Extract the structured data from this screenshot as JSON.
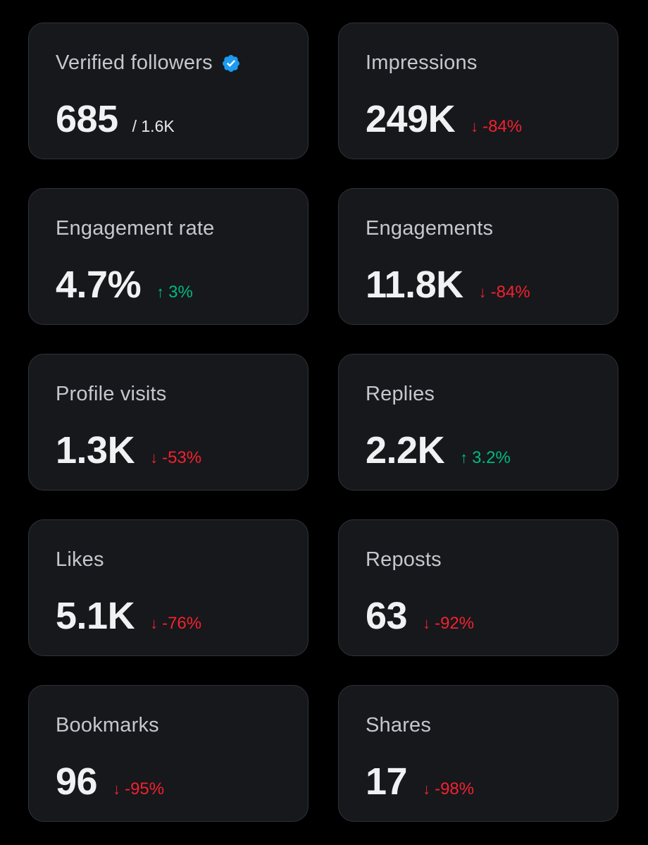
{
  "colors": {
    "background": "#000000",
    "card_background": "#16181c",
    "card_border": "#2f3336",
    "positive": "#00ba7c",
    "negative": "#f4212e",
    "verified_badge": "#1d9bf0"
  },
  "metrics": [
    {
      "label": "Verified followers",
      "value": "685",
      "sub": "/ 1.6K",
      "icon": "verified-badge-icon"
    },
    {
      "label": "Impressions",
      "value": "249K",
      "delta": "-84%",
      "direction": "down"
    },
    {
      "label": "Engagement rate",
      "value": "4.7%",
      "delta": "3%",
      "direction": "up"
    },
    {
      "label": "Engagements",
      "value": "11.8K",
      "delta": "-84%",
      "direction": "down"
    },
    {
      "label": "Profile visits",
      "value": "1.3K",
      "delta": "-53%",
      "direction": "down"
    },
    {
      "label": "Replies",
      "value": "2.2K",
      "delta": "3.2%",
      "direction": "up"
    },
    {
      "label": "Likes",
      "value": "5.1K",
      "delta": "-76%",
      "direction": "down"
    },
    {
      "label": "Reposts",
      "value": "63",
      "delta": "-92%",
      "direction": "down"
    },
    {
      "label": "Bookmarks",
      "value": "96",
      "delta": "-95%",
      "direction": "down"
    },
    {
      "label": "Shares",
      "value": "17",
      "delta": "-98%",
      "direction": "down"
    }
  ],
  "arrows": {
    "up": "↑",
    "down": "↓"
  }
}
